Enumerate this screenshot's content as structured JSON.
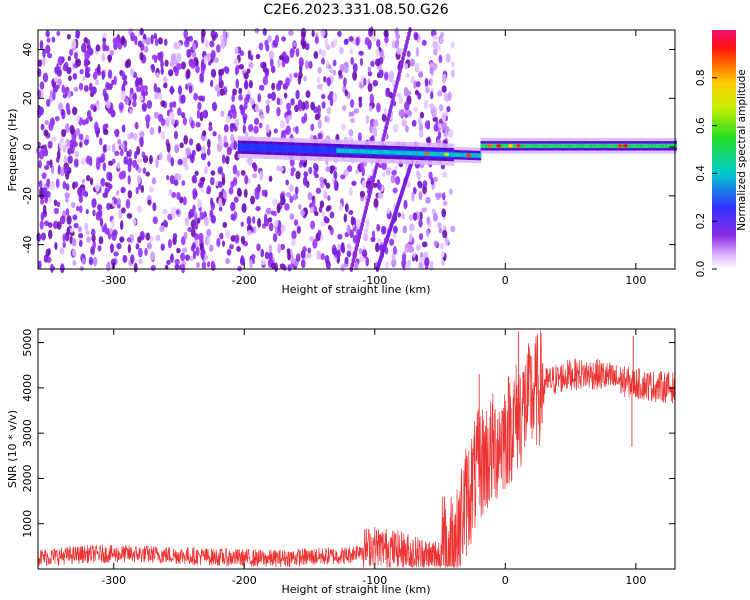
{
  "figure": {
    "title": "C2E6.2023.331.08.50.G26"
  },
  "chart_data": [
    {
      "type": "heatmap",
      "xlabel": "Height of straight line (km)",
      "ylabel": "Frequency (Hz)",
      "xlim": [
        -358,
        130
      ],
      "ylim": [
        -50,
        48
      ],
      "xticks": [
        -300,
        -200,
        -100,
        0,
        100
      ],
      "yticks": [
        -40,
        -20,
        0,
        20,
        40
      ],
      "colorbar": {
        "label": "Normalized spectral amplitude",
        "range": [
          0.0,
          1.0
        ],
        "ticks": [
          0.0,
          0.2,
          0.4,
          0.6,
          0.8
        ],
        "colormap": "rainbow (purple-blue-cyan-green-yellow-orange-red-magenta)"
      },
      "features": {
        "noise_region_x": [
          -358,
          -40
        ],
        "signal_band_center_hz": 0,
        "signal_start_x": -205,
        "signal_steady_from_x": 0,
        "diagonal_streaks": "two near-vertical streaks between -120 and -75 km"
      }
    },
    {
      "type": "line",
      "xlabel": "Height of straight line (km)",
      "ylabel": "SNR (10 * v/v)",
      "xlim": [
        -358,
        130
      ],
      "ylim": [
        0,
        5300
      ],
      "xticks": [
        -300,
        -200,
        -100,
        0,
        100
      ],
      "yticks": [
        1000,
        2000,
        3000,
        4000,
        5000
      ],
      "grid": false,
      "series": [
        {
          "color": "#ee3333",
          "points": [
            [
              -358,
              250
            ],
            [
              -320,
              330
            ],
            [
              -280,
              330
            ],
            [
              -250,
              300
            ],
            [
              -220,
              260
            ],
            [
              -180,
              230
            ],
            [
              -150,
              270
            ],
            [
              -120,
              300
            ],
            [
              -110,
              450
            ],
            [
              -100,
              520
            ],
            [
              -80,
              400
            ],
            [
              -60,
              250
            ],
            [
              -50,
              300
            ],
            [
              -40,
              600
            ],
            [
              -30,
              1500
            ],
            [
              -20,
              2300
            ],
            [
              -10,
              2600
            ],
            [
              0,
              3000
            ],
            [
              10,
              3400
            ],
            [
              20,
              3800
            ],
            [
              30,
              4100
            ],
            [
              50,
              4300
            ],
            [
              70,
              4300
            ],
            [
              90,
              4150
            ],
            [
              110,
              4050
            ],
            [
              130,
              4000
            ]
          ]
        }
      ]
    }
  ]
}
